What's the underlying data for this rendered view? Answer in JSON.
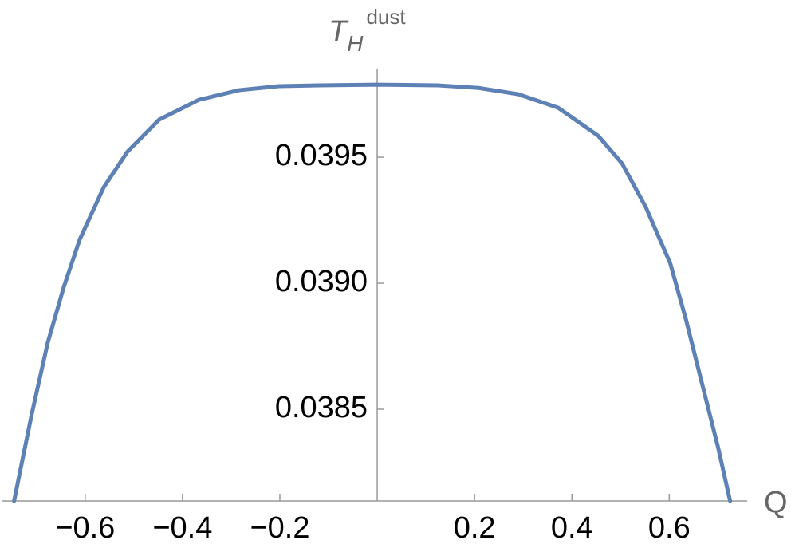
{
  "chart_data": {
    "type": "line",
    "x_label": "Q",
    "y_label": {
      "base": "T",
      "sub": "H",
      "sup": "dust"
    },
    "x": [
      -0.746,
      -0.71,
      -0.677,
      -0.644,
      -0.611,
      -0.562,
      -0.513,
      -0.448,
      -0.366,
      -0.284,
      -0.202,
      -0.12,
      0,
      0.126,
      0.208,
      0.29,
      0.372,
      0.454,
      0.503,
      0.552,
      0.602,
      0.634,
      0.667,
      0.7,
      0.725
    ],
    "series": [
      {
        "color": "#5e81b5",
        "values": [
          0.038136,
          0.038478,
          0.038763,
          0.038984,
          0.039174,
          0.03938,
          0.039522,
          0.039649,
          0.039728,
          0.039766,
          0.039782,
          0.039785,
          0.039788,
          0.039785,
          0.039775,
          0.03975,
          0.039696,
          0.039585,
          0.039475,
          0.039301,
          0.039079,
          0.038858,
          0.038604,
          0.038351,
          0.038136
        ]
      }
    ],
    "xlim": [
      -0.77,
      0.76
    ],
    "ylim": [
      0.038136,
      0.03982
    ],
    "xticks": [
      {
        "value": -0.6,
        "label": "−0.6"
      },
      {
        "value": -0.4,
        "label": "−0.4"
      },
      {
        "value": -0.2,
        "label": "−0.2"
      },
      0.2,
      0.4,
      0.6
    ],
    "yticks": [
      0.0385,
      {
        "value": 0.039,
        "label": "0.0390"
      },
      0.0395
    ]
  }
}
